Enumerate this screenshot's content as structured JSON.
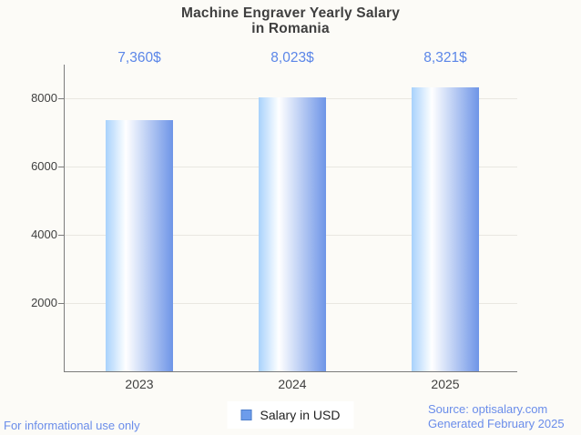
{
  "title": {
    "line1": "Machine Engraver Yearly Salary",
    "line2": "in Romania"
  },
  "chart_data": {
    "type": "bar",
    "categories": [
      "2023",
      "2024",
      "2025"
    ],
    "values": [
      7360,
      8023,
      8321
    ],
    "value_labels": [
      "7,360$",
      "8,023$",
      "8,321$"
    ],
    "title": "Machine Engraver Yearly Salary in Romania",
    "xlabel": "",
    "ylabel": "",
    "ylim": [
      0,
      9000
    ],
    "yticks": [
      2000,
      4000,
      6000,
      8000
    ],
    "grid": true,
    "legend_position": "bottom",
    "series": [
      {
        "name": "Salary in USD",
        "values": [
          7360,
          8023,
          8321
        ]
      }
    ],
    "bar_gradient": [
      "#a8d2fc",
      "#ffffff",
      "#6e95e7"
    ]
  },
  "legend": {
    "label": "Salary in USD",
    "swatch_color": "#6d9ceb"
  },
  "footer": {
    "disclaimer": "For informational use only",
    "source": "Source: optisalary.com",
    "generated": "Generated February 2025"
  },
  "colors": {
    "background": "#fcfbf7",
    "accent_text": "#5b86e8",
    "footer_text": "#6a8dea",
    "axis_text": "#404040",
    "grid_line": "#e9e7e1",
    "axis_line": "#7c7c7c",
    "legend_swatch": "#6d9ceb"
  }
}
